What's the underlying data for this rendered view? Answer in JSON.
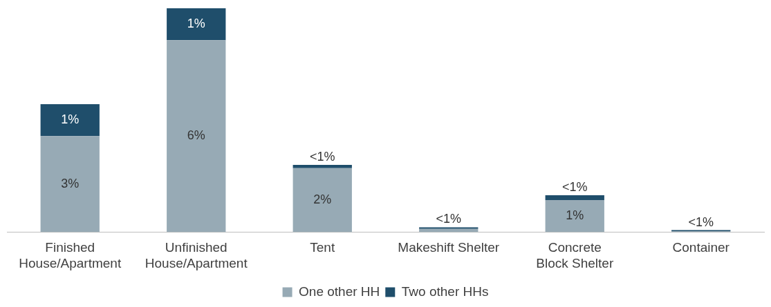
{
  "chart_data": {
    "type": "bar",
    "stacked": true,
    "legend": "bottom",
    "categories": [
      "Finished House/Apartment",
      "Unfinished House/Apartment",
      "Tent",
      "Makeshift Shelter",
      "Concrete Block Shelter",
      "Container"
    ],
    "series": [
      {
        "name": "One other HH",
        "color": "#97aab5",
        "values": [
          3,
          6,
          2,
          0.1,
          1,
          0.03
        ],
        "value_labels": [
          "3%",
          "6%",
          "2%",
          "<1%",
          "1%",
          "<1%"
        ]
      },
      {
        "name": "Two other HHs",
        "color": "#1f4e6b",
        "values": [
          1,
          1,
          0.1,
          0.05,
          0.15,
          0.03
        ],
        "value_labels": [
          "1%",
          "1%",
          "<1%",
          null,
          "<1%",
          null
        ]
      }
    ]
  }
}
